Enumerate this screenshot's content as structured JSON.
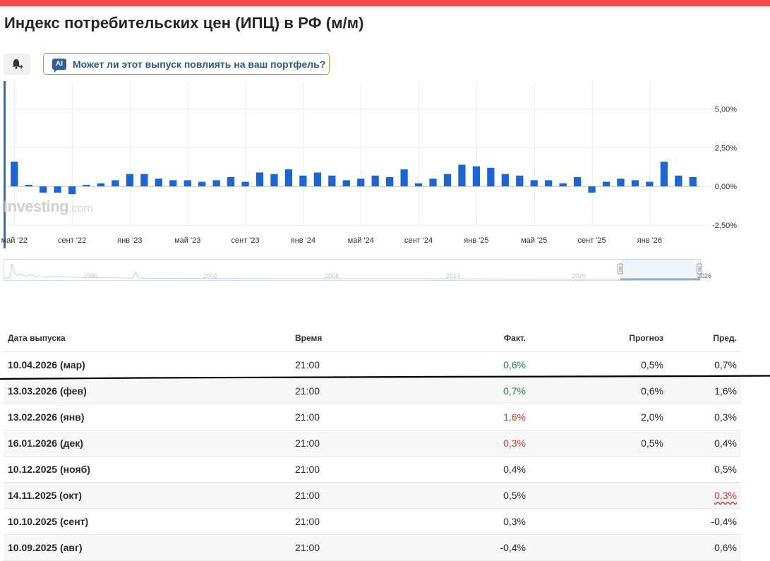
{
  "page": {
    "title": "Индекс потребительских цен (ИПЦ) в РФ (м/м)",
    "ai_button_badge": "AI",
    "ai_button_label": "Может ли этот выпуск повлиять на ваш портфель?",
    "bell_icon": "bell-plus-icon"
  },
  "watermark": {
    "brand": "Investing",
    "suffix": ".com"
  },
  "chart_data": {
    "type": "bar",
    "y_tick_labels": [
      "5,00%",
      "2,50%",
      "0,00%",
      "-2,50%"
    ],
    "y_ticks": [
      5,
      2.5,
      0,
      -2.5
    ],
    "ylim": [
      -2.5,
      6.8
    ],
    "x_tick_labels": [
      "май '22",
      "сент '22",
      "янв '23",
      "май '23",
      "сент '23",
      "янв '24",
      "май '24",
      "сент '24",
      "янв '25",
      "май '25",
      "сент '25",
      "янв '26"
    ],
    "values": [
      1.6,
      0.1,
      -0.4,
      -0.4,
      -0.5,
      0.1,
      0.2,
      0.4,
      0.8,
      0.8,
      0.5,
      0.4,
      0.4,
      0.3,
      0.4,
      0.6,
      0.3,
      0.9,
      0.8,
      1.1,
      0.7,
      0.9,
      0.7,
      0.4,
      0.5,
      0.7,
      0.6,
      1.1,
      0.2,
      0.5,
      0.8,
      1.4,
      1.3,
      1.2,
      0.8,
      0.7,
      0.4,
      0.4,
      0.2,
      0.6,
      -0.4,
      0.3,
      0.5,
      0.4,
      0.3,
      1.6,
      0.7,
      0.6
    ],
    "bar_color": "#1a66d6",
    "grid": true
  },
  "navigator": {
    "year_labels": [
      "1996",
      "2002",
      "2008",
      "2014",
      "2020",
      "2026"
    ]
  },
  "table": {
    "headers": {
      "date": "Дата выпуска",
      "time": "Время",
      "actual": "Факт.",
      "forecast": "Прогноз",
      "previous": "Пред."
    },
    "rows": [
      {
        "date": "10.04.2026 (мар)",
        "time": "21:00",
        "actual": "0,6%",
        "actual_color": "green",
        "forecast": "0,5%",
        "previous": "0,7%",
        "previous_color": ""
      },
      {
        "date": "13.03.2026 (фев)",
        "time": "21:00",
        "actual": "0,7%",
        "actual_color": "green",
        "forecast": "0,6%",
        "previous": "1,6%",
        "previous_color": ""
      },
      {
        "date": "13.02.2026 (янв)",
        "time": "21:00",
        "actual": "1,6%",
        "actual_color": "red",
        "forecast": "2,0%",
        "previous": "0,3%",
        "previous_color": ""
      },
      {
        "date": "16.01.2026 (дек)",
        "time": "21:00",
        "actual": "0,3%",
        "actual_color": "red",
        "forecast": "0,5%",
        "previous": "0,4%",
        "previous_color": ""
      },
      {
        "date": "10.12.2025 (нояб)",
        "time": "21:00",
        "actual": "0,4%",
        "actual_color": "",
        "forecast": "",
        "previous": "0,5%",
        "previous_color": ""
      },
      {
        "date": "14.11.2025 (окт)",
        "time": "21:00",
        "actual": "0,5%",
        "actual_color": "",
        "forecast": "",
        "previous": "0,3%",
        "previous_color": "red"
      },
      {
        "date": "10.10.2025 (сент)",
        "time": "21:00",
        "actual": "0,3%",
        "actual_color": "",
        "forecast": "",
        "previous": "-0,4%",
        "previous_color": ""
      },
      {
        "date": "10.09.2025 (авг)",
        "time": "21:00",
        "actual": "-0,4%",
        "actual_color": "",
        "forecast": "",
        "previous": "0,6%",
        "previous_color": ""
      }
    ]
  }
}
